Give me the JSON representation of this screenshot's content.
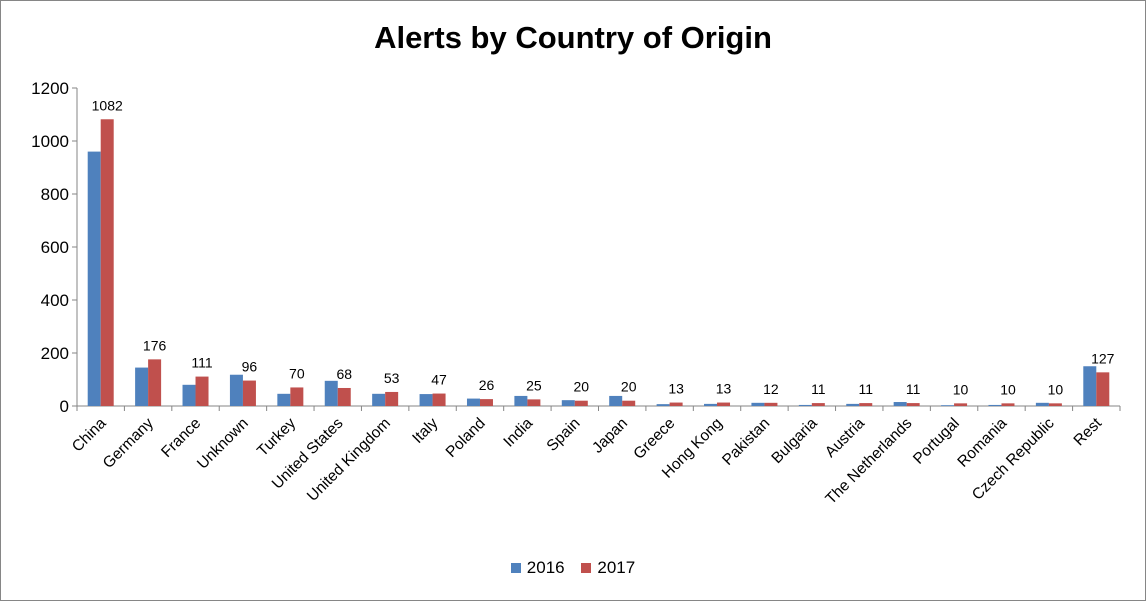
{
  "chart_data": {
    "type": "bar",
    "title": "Alerts by Country of Origin",
    "xlabel": "",
    "ylabel": "",
    "ylim": [
      0,
      1200
    ],
    "yticks": [
      0,
      200,
      400,
      600,
      800,
      1000,
      1200
    ],
    "grid": false,
    "legend_position": "bottom",
    "categories": [
      "China",
      "Germany",
      "France",
      "Unknown",
      "Turkey",
      "United States",
      "United Kingdom",
      "Italy",
      "Poland",
      "India",
      "Spain",
      "Japan",
      "Greece",
      "Hong Kong",
      "Pakistan",
      "Bulgaria",
      "Austria",
      "The Netherlands",
      "Portugal",
      "Romania",
      "Czech Republic",
      "Rest"
    ],
    "series": [
      {
        "name": "2016",
        "color": "#4F81BD",
        "values": [
          960,
          145,
          80,
          118,
          46,
          95,
          46,
          45,
          28,
          38,
          22,
          38,
          7,
          8,
          12,
          4,
          8,
          15,
          3,
          4,
          12,
          150
        ]
      },
      {
        "name": "2017",
        "color": "#C0504D",
        "values": [
          1082,
          176,
          111,
          96,
          70,
          68,
          53,
          47,
          26,
          25,
          20,
          20,
          13,
          13,
          12,
          11,
          11,
          11,
          10,
          10,
          10,
          127
        ]
      }
    ],
    "data_labels_series": "2017"
  }
}
